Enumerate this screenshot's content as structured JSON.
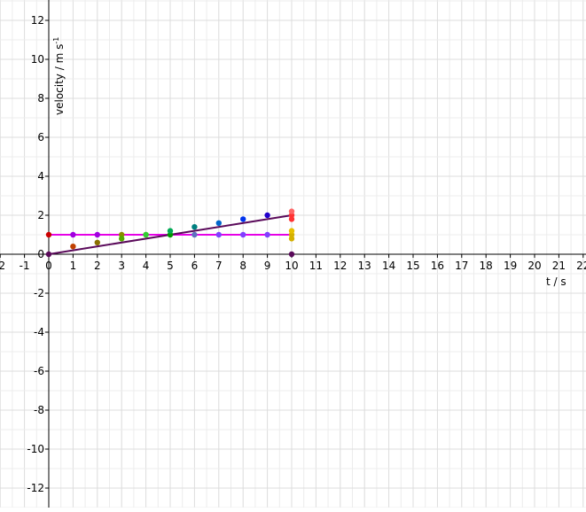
{
  "chart_data": {
    "type": "scatter",
    "title": "",
    "xlabel": "t / s",
    "ylabel": "velocity / m s",
    "ylabel_superscript": "-1",
    "xlim": [
      -2,
      22
    ],
    "ylim": [
      -13,
      13
    ],
    "grid": true,
    "x_ticks": [
      -2,
      -1,
      0,
      1,
      2,
      3,
      4,
      5,
      6,
      7,
      8,
      9,
      10,
      11,
      12,
      13,
      14,
      15,
      16,
      17,
      18,
      19,
      20,
      21,
      22
    ],
    "y_ticks": [
      -12,
      -10,
      -8,
      -6,
      -4,
      -2,
      0,
      2,
      4,
      6,
      8,
      10,
      12
    ],
    "series": [
      {
        "color": "#e600e6",
        "line": {
          "x": [
            0,
            10
          ],
          "y": [
            1,
            1
          ]
        },
        "points": [
          {
            "x": 0,
            "y": 1,
            "color": "#cc0000"
          },
          {
            "x": 1,
            "y": 1,
            "color": "#a000e0"
          },
          {
            "x": 2,
            "y": 1,
            "color": "#a000e0"
          },
          {
            "x": 3,
            "y": 1,
            "color": "#8a8a00"
          },
          {
            "x": 4,
            "y": 1,
            "color": "#66cc00"
          },
          {
            "x": 5,
            "y": 1,
            "color": "#009900"
          },
          {
            "x": 6,
            "y": 1,
            "color": "#6070c0"
          },
          {
            "x": 7,
            "y": 1,
            "color": "#8040ff"
          },
          {
            "x": 8,
            "y": 1,
            "color": "#8040ff"
          },
          {
            "x": 9,
            "y": 1,
            "color": "#8040ff"
          },
          {
            "x": 10,
            "y": 1,
            "color": "#d4b000"
          }
        ]
      },
      {
        "color": "#5a0a5a",
        "line": {
          "x": [
            0,
            10
          ],
          "y": [
            0,
            2
          ]
        },
        "points": [
          {
            "x": 0,
            "y": 0,
            "color": "#5a0a5a"
          },
          {
            "x": 1,
            "y": 0.4,
            "color": "#c04000"
          },
          {
            "x": 2,
            "y": 0.6,
            "color": "#8a7000"
          },
          {
            "x": 3,
            "y": 0.8,
            "color": "#55aa00"
          },
          {
            "x": 4,
            "y": 1.0,
            "color": "#33cc33"
          },
          {
            "x": 5,
            "y": 1.2,
            "color": "#00aa55"
          },
          {
            "x": 6,
            "y": 1.4,
            "color": "#008080"
          },
          {
            "x": 7,
            "y": 1.6,
            "color": "#0066cc"
          },
          {
            "x": 8,
            "y": 1.8,
            "color": "#0033ee"
          },
          {
            "x": 9,
            "y": 2.0,
            "color": "#2200cc"
          },
          {
            "x": 10,
            "y": 2.0,
            "color": "#ff3333"
          }
        ]
      }
    ],
    "extra_points": [
      {
        "x": 10,
        "y": 0,
        "color": "#5a0a5a"
      },
      {
        "x": 10,
        "y": 2.2,
        "color": "#ff6666"
      },
      {
        "x": 10,
        "y": 1.8,
        "color": "#ff3333"
      },
      {
        "x": 10,
        "y": 1.2,
        "color": "#e6c000"
      },
      {
        "x": 10,
        "y": 0.8,
        "color": "#d4b000"
      }
    ]
  }
}
